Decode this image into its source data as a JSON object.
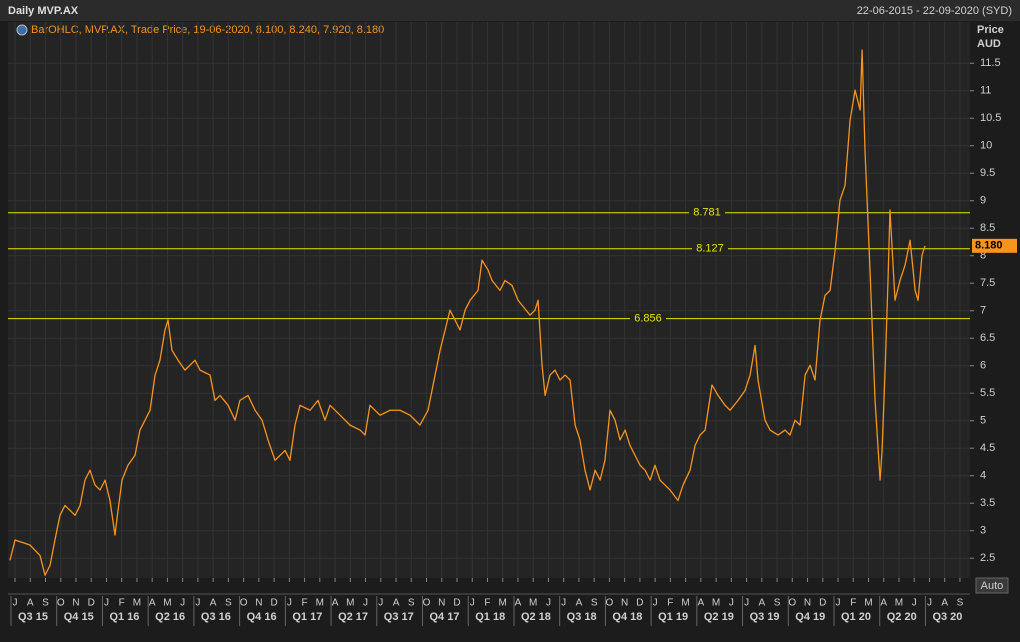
{
  "chart_data": {
    "type": "line",
    "title": "Daily MVP.AX",
    "subtitle": "22-06-2015 - 22-09-2020 (SYD)",
    "legend_text": "BarOHLC, MVP.AX, Trade Price, 19-06-2020, 8.100, 8.240, 7.920, 8.180",
    "y_axis_label": "Price",
    "y_axis_unit": "AUD",
    "auto_button": "Auto",
    "color": "#f7941d",
    "reference_color": "#e6e600",
    "grid": true,
    "xlim": [
      -0.46,
      62.66
    ],
    "ylim": [
      2.14,
      12.25
    ],
    "yticks": [
      2.5,
      3,
      3.5,
      4,
      4.5,
      5,
      5.5,
      6,
      6.5,
      7,
      7.5,
      8,
      8.5,
      9,
      9.5,
      10,
      10.5,
      11,
      11.5
    ],
    "xticks": [
      {
        "value": 0,
        "label": "J"
      },
      {
        "value": 1,
        "label": "A"
      },
      {
        "value": 2,
        "label": "S"
      },
      {
        "value": 3,
        "label": "O"
      },
      {
        "value": 4,
        "label": "N"
      },
      {
        "value": 5,
        "label": "D"
      },
      {
        "value": 6,
        "label": "J"
      },
      {
        "value": 7,
        "label": "F"
      },
      {
        "value": 8,
        "label": "M"
      },
      {
        "value": 9,
        "label": "A"
      },
      {
        "value": 10,
        "label": "M"
      },
      {
        "value": 11,
        "label": "J"
      },
      {
        "value": 12,
        "label": "J"
      },
      {
        "value": 13,
        "label": "A"
      },
      {
        "value": 14,
        "label": "S"
      },
      {
        "value": 15,
        "label": "O"
      },
      {
        "value": 16,
        "label": "N"
      },
      {
        "value": 17,
        "label": "D"
      },
      {
        "value": 18,
        "label": "J"
      },
      {
        "value": 19,
        "label": "F"
      },
      {
        "value": 20,
        "label": "M"
      },
      {
        "value": 21,
        "label": "A"
      },
      {
        "value": 22,
        "label": "M"
      },
      {
        "value": 23,
        "label": "J"
      },
      {
        "value": 24,
        "label": "J"
      },
      {
        "value": 25,
        "label": "A"
      },
      {
        "value": 26,
        "label": "S"
      },
      {
        "value": 27,
        "label": "O"
      },
      {
        "value": 28,
        "label": "N"
      },
      {
        "value": 29,
        "label": "D"
      },
      {
        "value": 30,
        "label": "J"
      },
      {
        "value": 31,
        "label": "F"
      },
      {
        "value": 32,
        "label": "M"
      },
      {
        "value": 33,
        "label": "A"
      },
      {
        "value": 34,
        "label": "M"
      },
      {
        "value": 35,
        "label": "J"
      },
      {
        "value": 36,
        "label": "J"
      },
      {
        "value": 37,
        "label": "A"
      },
      {
        "value": 38,
        "label": "S"
      },
      {
        "value": 39,
        "label": "O"
      },
      {
        "value": 40,
        "label": "N"
      },
      {
        "value": 41,
        "label": "D"
      },
      {
        "value": 42,
        "label": "J"
      },
      {
        "value": 43,
        "label": "F"
      },
      {
        "value": 44,
        "label": "M"
      },
      {
        "value": 45,
        "label": "A"
      },
      {
        "value": 46,
        "label": "M"
      },
      {
        "value": 47,
        "label": "J"
      },
      {
        "value": 48,
        "label": "J"
      },
      {
        "value": 49,
        "label": "A"
      },
      {
        "value": 50,
        "label": "S"
      },
      {
        "value": 51,
        "label": "O"
      },
      {
        "value": 52,
        "label": "N"
      },
      {
        "value": 53,
        "label": "D"
      },
      {
        "value": 54,
        "label": "J"
      },
      {
        "value": 55,
        "label": "F"
      },
      {
        "value": 56,
        "label": "M"
      },
      {
        "value": 57,
        "label": "A"
      },
      {
        "value": 58,
        "label": "M"
      },
      {
        "value": 59,
        "label": "J"
      },
      {
        "value": 60,
        "label": "J"
      },
      {
        "value": 61,
        "label": "A"
      },
      {
        "value": 62,
        "label": "S"
      }
    ],
    "quarter_ticks": [
      {
        "value": 0,
        "label": "Q3 15"
      },
      {
        "value": 3,
        "label": "Q4 15"
      },
      {
        "value": 6,
        "label": "Q1 16"
      },
      {
        "value": 9,
        "label": "Q2 16"
      },
      {
        "value": 12,
        "label": "Q3 16"
      },
      {
        "value": 15,
        "label": "Q4 16"
      },
      {
        "value": 18,
        "label": "Q1 17"
      },
      {
        "value": 21,
        "label": "Q2 17"
      },
      {
        "value": 24,
        "label": "Q3 17"
      },
      {
        "value": 27,
        "label": "Q4 17"
      },
      {
        "value": 30,
        "label": "Q1 18"
      },
      {
        "value": 33,
        "label": "Q2 18"
      },
      {
        "value": 36,
        "label": "Q3 18"
      },
      {
        "value": 39,
        "label": "Q4 18"
      },
      {
        "value": 42,
        "label": "Q1 19"
      },
      {
        "value": 45,
        "label": "Q2 19"
      },
      {
        "value": 48,
        "label": "Q3 19"
      },
      {
        "value": 51,
        "label": "Q4 19"
      },
      {
        "value": 54,
        "label": "Q1 20"
      },
      {
        "value": 57,
        "label": "Q2 20"
      },
      {
        "value": 60,
        "label": "Q3 20"
      }
    ],
    "reference_lines": [
      8.781,
      8.127,
      6.856
    ],
    "last_value": {
      "value": 8.18,
      "label": "8.180"
    },
    "x": [
      -0.33,
      0,
      0.98,
      1.64,
      1.97,
      2.3,
      2.62,
      2.95,
      3.28,
      3.94,
      4.27,
      4.59,
      4.92,
      5.25,
      5.58,
      5.91,
      6.23,
      6.56,
      6.76,
      7.02,
      7.41,
      7.87,
      8.2,
      8.53,
      8.86,
      9.19,
      9.51,
      9.84,
      10.04,
      10.3,
      10.7,
      11.15,
      11.81,
      12.14,
      12.8,
      13.12,
      13.45,
      13.98,
      14.44,
      14.76,
      15.29,
      15.75,
      16.21,
      16.6,
      17.06,
      17.39,
      17.72,
      18.04,
      18.37,
      18.7,
      19.36,
      19.88,
      20.34,
      20.67,
      21.33,
      21.98,
      22.64,
      22.97,
      23.29,
      23.95,
      24.61,
      25.26,
      25.92,
      26.57,
      27.1,
      27.56,
      27.89,
      28.22,
      28.54,
      28.87,
      29.2,
      29.53,
      29.86,
      30.38,
      30.64,
      31.04,
      31.3,
      31.82,
      32.15,
      32.61,
      33.01,
      33.27,
      33.79,
      34.12,
      34.32,
      34.58,
      34.78,
      35.1,
      35.43,
      35.76,
      36.09,
      36.42,
      36.75,
      37.07,
      37.4,
      37.73,
      38.06,
      38.39,
      38.71,
      39.04,
      39.37,
      39.7,
      40.03,
      40.35,
      40.68,
      41.01,
      41.34,
      41.67,
      41.99,
      42.32,
      42.65,
      42.98,
      43.5,
      43.83,
      44.29,
      44.62,
      44.95,
      45.28,
      45.73,
      46.13,
      46.59,
      46.92,
      47.44,
      47.9,
      48.23,
      48.56,
      48.75,
      49.21,
      49.54,
      50.07,
      50.52,
      50.85,
      51.18,
      51.51,
      51.84,
      52.17,
      52.49,
      52.82,
      53.15,
      53.48,
      53.81,
      54.13,
      54.46,
      54.79,
      55.12,
      55.45,
      55.58,
      55.77,
      56.1,
      56.43,
      56.76,
      56.89,
      57.09,
      57.28,
      57.41,
      57.74,
      58.07,
      58.4,
      58.73,
      59.06,
      59.25,
      59.51,
      59.71
    ],
    "values": [
      2.46,
      2.83,
      2.74,
      2.55,
      2.19,
      2.37,
      2.83,
      3.28,
      3.46,
      3.28,
      3.46,
      3.92,
      4.1,
      3.83,
      3.74,
      3.92,
      3.55,
      2.92,
      3.37,
      3.92,
      4.19,
      4.37,
      4.83,
      5.01,
      5.19,
      5.83,
      6.1,
      6.65,
      6.83,
      6.28,
      6.1,
      5.92,
      6.1,
      5.92,
      5.83,
      5.37,
      5.46,
      5.28,
      5.01,
      5.37,
      5.46,
      5.19,
      5.01,
      4.65,
      4.28,
      4.37,
      4.46,
      4.28,
      4.92,
      5.28,
      5.19,
      5.37,
      5.01,
      5.28,
      5.1,
      4.92,
      4.83,
      4.74,
      5.28,
      5.1,
      5.19,
      5.19,
      5.1,
      4.92,
      5.19,
      5.83,
      6.28,
      6.65,
      7.01,
      6.83,
      6.65,
      7.01,
      7.19,
      7.37,
      7.92,
      7.74,
      7.55,
      7.37,
      7.55,
      7.46,
      7.19,
      7.1,
      6.92,
      7.01,
      7.19,
      6.01,
      5.46,
      5.83,
      5.92,
      5.74,
      5.83,
      5.74,
      4.92,
      4.65,
      4.1,
      3.74,
      4.1,
      3.92,
      4.28,
      5.19,
      5.01,
      4.65,
      4.83,
      4.55,
      4.37,
      4.19,
      4.1,
      3.92,
      4.19,
      3.92,
      3.83,
      3.74,
      3.55,
      3.83,
      4.1,
      4.55,
      4.74,
      4.83,
      5.65,
      5.46,
      5.28,
      5.19,
      5.37,
      5.55,
      5.83,
      6.37,
      5.74,
      5.01,
      4.83,
      4.74,
      4.83,
      4.74,
      5.01,
      4.92,
      5.83,
      6.01,
      5.74,
      6.83,
      7.28,
      7.37,
      8.1,
      9.01,
      9.28,
      10.46,
      11.01,
      10.65,
      11.74,
      9.92,
      7.74,
      5.37,
      3.92,
      4.46,
      5.92,
      7.55,
      8.83,
      7.19,
      7.55,
      7.83,
      8.28,
      7.37,
      7.19,
      8.01,
      8.18
    ]
  }
}
